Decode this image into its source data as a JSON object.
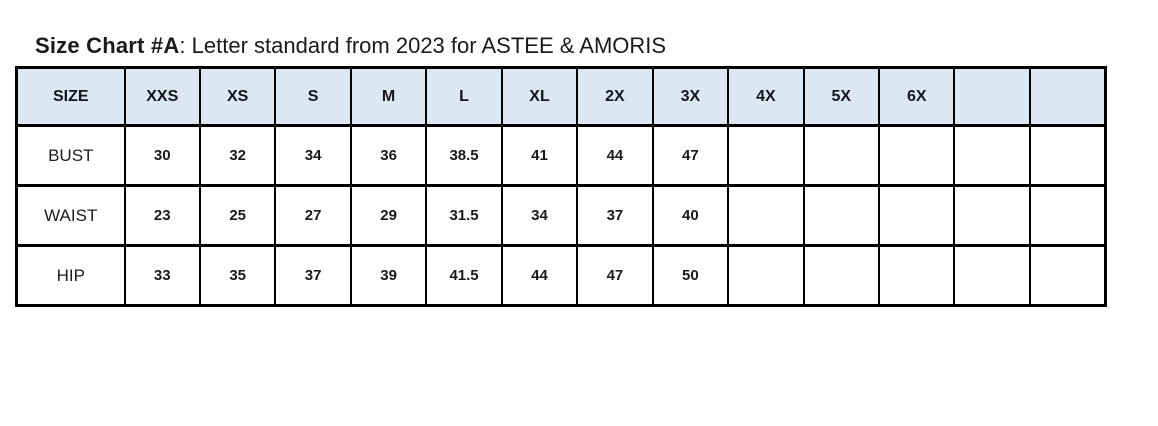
{
  "title": {
    "bold": "Size Chart #A",
    "rest": ": Letter standard from 2023 for ASTEE & AMORIS"
  },
  "table": {
    "columns": [
      "SIZE",
      "XXS",
      "XS",
      "S",
      "M",
      "L",
      "XL",
      "2X",
      "3X",
      "4X",
      "5X",
      "6X",
      "",
      ""
    ],
    "rows": [
      {
        "label": "BUST",
        "values": [
          "30",
          "32",
          "34",
          "36",
          "38.5",
          "41",
          "44",
          "47",
          "",
          "",
          "",
          "",
          ""
        ]
      },
      {
        "label": "WAIST",
        "values": [
          "23",
          "25",
          "27",
          "29",
          "31.5",
          "34",
          "37",
          "40",
          "",
          "",
          "",
          "",
          ""
        ]
      },
      {
        "label": "HIP",
        "values": [
          "33",
          "35",
          "37",
          "39",
          "41.5",
          "44",
          "47",
          "50",
          "",
          "",
          "",
          "",
          ""
        ]
      }
    ]
  },
  "colors": {
    "header_bg": "#dbe7f3",
    "border": "#000000",
    "text": "#1a1a1a"
  }
}
